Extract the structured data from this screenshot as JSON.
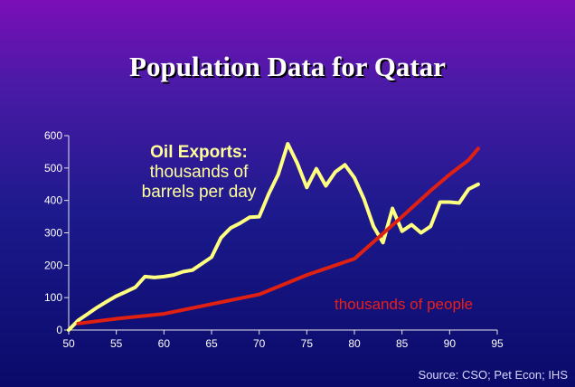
{
  "title": "Population Data for Qatar",
  "source": "Source: CSO; Pet Econ; IHS",
  "chart_data": {
    "type": "line",
    "xlim": [
      50,
      95
    ],
    "ylim": [
      0,
      600
    ],
    "x_ticks": [
      "50",
      "55",
      "60",
      "65",
      "70",
      "75",
      "80",
      "85",
      "90",
      "95"
    ],
    "y_ticks": [
      "0",
      "100",
      "200",
      "300",
      "400",
      "500",
      "600"
    ],
    "grid": false,
    "series": [
      {
        "label_title": "Oil Exports:",
        "label_lines": [
          "thousands of",
          "barrels per day"
        ],
        "color": "#ffff80",
        "x": [
          50,
          51,
          52,
          53,
          54,
          55,
          56,
          57,
          58,
          59,
          60,
          61,
          62,
          63,
          64,
          65,
          66,
          67,
          68,
          69,
          70,
          71,
          72,
          73,
          74,
          75,
          76,
          77,
          78,
          79,
          80,
          81,
          82,
          83,
          84,
          85,
          86,
          87,
          88,
          89,
          90,
          91,
          92,
          93
        ],
        "values": [
          0,
          30,
          50,
          70,
          88,
          105,
          118,
          132,
          165,
          162,
          165,
          170,
          180,
          185,
          205,
          225,
          285,
          315,
          330,
          348,
          350,
          420,
          480,
          575,
          515,
          440,
          498,
          445,
          488,
          510,
          470,
          405,
          320,
          270,
          375,
          305,
          325,
          300,
          320,
          395,
          395,
          392,
          435,
          450
        ]
      },
      {
        "label": "thousands of people",
        "color": "#e02010",
        "x": [
          51,
          55,
          60,
          65,
          70,
          75,
          80,
          85,
          88,
          90,
          92,
          93
        ],
        "values": [
          20,
          35,
          50,
          80,
          110,
          170,
          220,
          350,
          430,
          480,
          525,
          560
        ]
      }
    ]
  }
}
